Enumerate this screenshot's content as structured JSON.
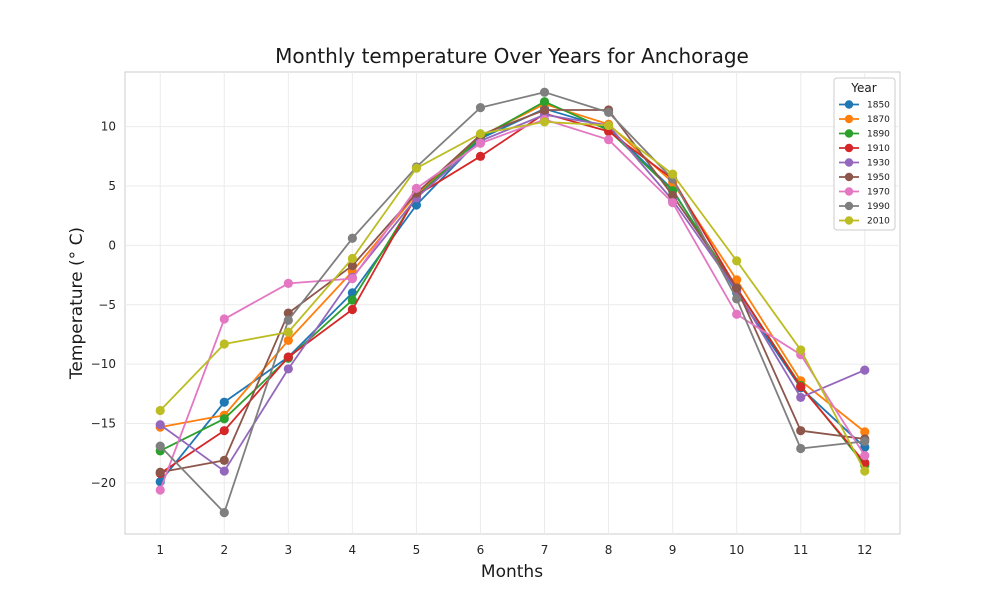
{
  "chart_data": {
    "type": "line",
    "title": "Monthly temperature Over Years for Anchorage",
    "xlabel": "Months",
    "ylabel": "Temperature (° C)",
    "x": [
      1,
      2,
      3,
      4,
      5,
      6,
      7,
      8,
      9,
      10,
      11,
      12
    ],
    "x_ticks": [
      "1",
      "2",
      "3",
      "4",
      "5",
      "6",
      "7",
      "8",
      "9",
      "10",
      "11",
      "12"
    ],
    "y_ticks": [
      -20,
      -15,
      -10,
      -5,
      0,
      5,
      10
    ],
    "y_tick_labels": [
      "−20",
      "−15",
      "−10",
      "−5",
      "0",
      "5",
      "10"
    ],
    "xlim": [
      0.45,
      12.55
    ],
    "ylim": [
      -24.3,
      14.6
    ],
    "grid": true,
    "legend": {
      "title": "Year",
      "placement": "top-right"
    },
    "series": [
      {
        "name": "1850",
        "color": "#1f77b4",
        "values": [
          -19.9,
          -13.2,
          -9.4,
          -4.0,
          3.4,
          9.0,
          11.5,
          9.9,
          4.7,
          -4.0,
          -12.0,
          -17.0
        ]
      },
      {
        "name": "1870",
        "color": "#ff7f0e",
        "values": [
          -15.3,
          -14.3,
          -8.0,
          -2.2,
          4.3,
          9.2,
          11.9,
          10.2,
          5.3,
          -2.9,
          -11.4,
          -15.7
        ]
      },
      {
        "name": "1890",
        "color": "#2ca02c",
        "values": [
          -17.3,
          -14.6,
          -9.5,
          -4.6,
          4.1,
          9.1,
          12.1,
          9.7,
          4.6,
          -3.6,
          -11.8,
          -18.5
        ]
      },
      {
        "name": "1910",
        "color": "#d62728",
        "values": [
          -19.2,
          -15.6,
          -9.4,
          -5.4,
          4.2,
          7.5,
          11.1,
          9.6,
          5.6,
          -3.6,
          -11.9,
          -18.3
        ]
      },
      {
        "name": "1930",
        "color": "#9467bd",
        "values": [
          -15.1,
          -19.0,
          -10.4,
          -2.7,
          4.0,
          8.8,
          11.0,
          10.1,
          3.8,
          -3.8,
          -12.8,
          -10.5
        ]
      },
      {
        "name": "1950",
        "color": "#8c564b",
        "values": [
          -19.1,
          -18.1,
          -5.7,
          -1.7,
          4.4,
          9.3,
          11.4,
          11.4,
          4.2,
          -3.6,
          -15.6,
          -16.3
        ]
      },
      {
        "name": "1970",
        "color": "#e377c2",
        "values": [
          -20.6,
          -6.2,
          -3.2,
          -2.8,
          4.8,
          8.6,
          10.6,
          8.9,
          3.6,
          -5.8,
          -9.2,
          -17.7
        ]
      },
      {
        "name": "1990",
        "color": "#7f7f7f",
        "values": [
          -16.9,
          -22.5,
          -6.3,
          0.6,
          6.6,
          11.6,
          12.9,
          11.2,
          5.6,
          -4.5,
          -17.1,
          -16.5
        ]
      },
      {
        "name": "2010",
        "color": "#bcbd22",
        "values": [
          -13.9,
          -8.3,
          -7.3,
          -1.1,
          6.5,
          9.4,
          10.4,
          10.1,
          6.0,
          -1.3,
          -8.8,
          -19.0
        ]
      }
    ]
  }
}
